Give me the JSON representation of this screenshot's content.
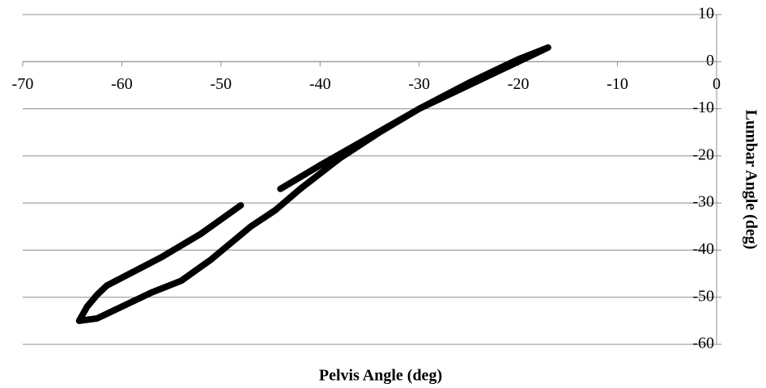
{
  "chart_data": {
    "type": "line",
    "x_label": "Pelvis Angle (deg)",
    "y_label": "Lumbar Angle (deg)",
    "x": [
      -48,
      -52,
      -56,
      -61.5,
      -62.5,
      -63.5,
      -64.3,
      -62.5,
      -60,
      -57,
      -54,
      -51,
      -49,
      -47,
      -44.5,
      -42,
      -38,
      -34,
      -30,
      -26,
      -22,
      -19,
      -17,
      -20,
      -25,
      -30,
      -35,
      -40,
      -44
    ],
    "series": [
      {
        "color": "#000000",
        "values": [
          -30.5,
          -36.5,
          -41.5,
          -47.5,
          -49.5,
          -52,
          -55,
          -54.5,
          -52,
          -49,
          -46.5,
          -42,
          -38.5,
          -35,
          -31.5,
          -27,
          -20.5,
          -15,
          -10,
          -6,
          -2,
          1,
          3,
          0.5,
          -4.5,
          -10,
          -16,
          -22,
          -27
        ]
      }
    ],
    "xlim": [
      -70,
      0
    ],
    "xticks": [
      -70,
      -60,
      -50,
      -40,
      -30,
      -20,
      -10,
      0
    ],
    "ylim": [
      -60,
      10
    ],
    "yticks": [
      -60,
      -50,
      -40,
      -30,
      -20,
      -10,
      0,
      10
    ],
    "grid": true
  }
}
